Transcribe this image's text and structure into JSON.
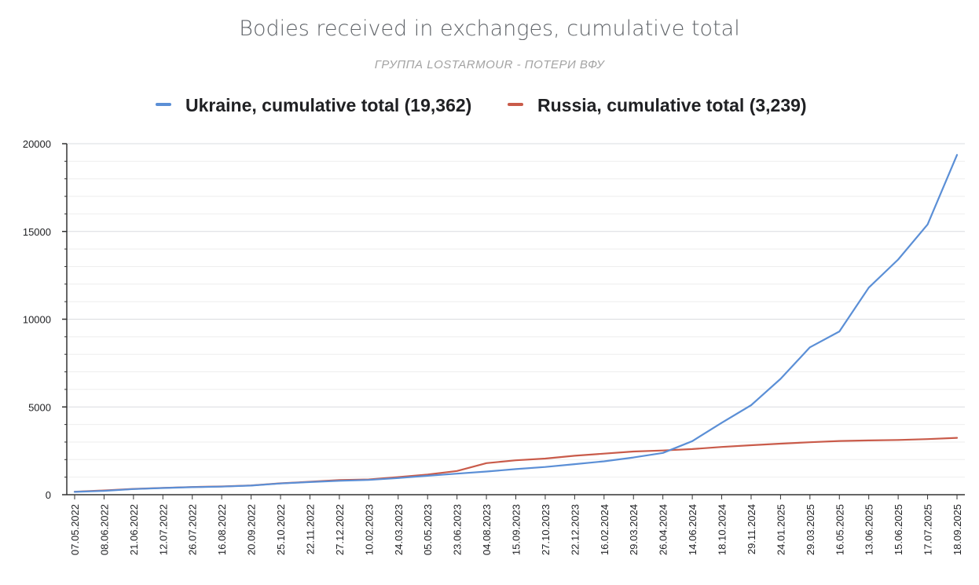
{
  "chart_data": {
    "type": "line",
    "title": "Bodies received in exchanges, cumulative total",
    "subtitle": "ГРУППА LOSTARMOUR - ПОТЕРИ ВФУ",
    "ylim": [
      0,
      20000
    ],
    "yticks": [
      0,
      5000,
      10000,
      15000,
      20000
    ],
    "ytick_labels": [
      "0",
      "5000",
      "10000",
      "15000",
      "20000"
    ],
    "grid": true,
    "legend_position": "top",
    "categories": [
      "07.05.2022",
      "08.06.2022",
      "21.06.2022",
      "12.07.2022",
      "26.07.2022",
      "16.08.2022",
      "20.09.2022",
      "25.10.2022",
      "22.11.2022",
      "27.12.2022",
      "10.02.2023",
      "24.03.2023",
      "05.05.2023",
      "23.06.2023",
      "04.08.2023",
      "15.09.2023",
      "27.10.2023",
      "22.12.2023",
      "16.02.2024",
      "29.03.2024",
      "26.04.2024",
      "14.06.2024",
      "18.10.2024",
      "29.11.2024",
      "24.01.2025",
      "29.03.2025",
      "16.05.2025",
      "13.06.2025",
      "15.06.2025",
      "17.07.2025",
      "18.09.2025"
    ],
    "series": [
      {
        "name": "Ukraine, cumulative total (19,362)",
        "color": "#5b8fd6",
        "values": [
          160,
          220,
          320,
          380,
          430,
          460,
          520,
          640,
          720,
          790,
          840,
          950,
          1080,
          1200,
          1320,
          1460,
          1580,
          1740,
          1900,
          2120,
          2380,
          3050,
          4100,
          5100,
          6600,
          8400,
          9300,
          11800,
          13400,
          15400,
          19362
        ]
      },
      {
        "name": "Russia, cumulative total (3,239)",
        "color": "#c95b4a",
        "values": [
          170,
          240,
          330,
          390,
          440,
          470,
          530,
          650,
          740,
          830,
          870,
          1000,
          1150,
          1350,
          1800,
          1960,
          2060,
          2220,
          2340,
          2460,
          2520,
          2600,
          2720,
          2820,
          2910,
          2990,
          3060,
          3090,
          3120,
          3170,
          3239
        ]
      }
    ]
  }
}
